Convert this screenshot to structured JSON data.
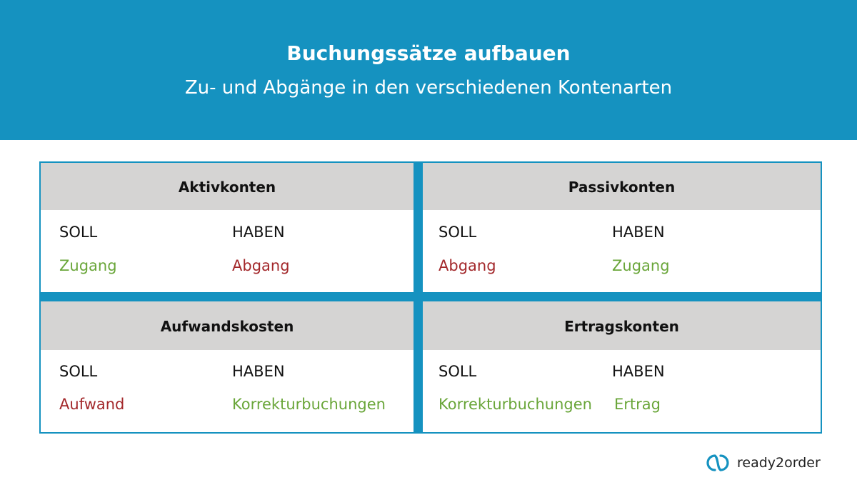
{
  "header": {
    "title": "Buchungssätze aufbauen",
    "subtitle": "Zu- und Abgänge in den verschiedenen Kontenarten"
  },
  "colors": {
    "brand": "#1592c0",
    "header_gray": "#d5d4d3",
    "increase_green": "#6aa63a",
    "decrease_red": "#a3282b"
  },
  "cells": [
    {
      "title": "Aktivkonten",
      "soll": "SOLL",
      "haben": "HABEN",
      "soll_value": "Zugang",
      "haben_value": "Abgang"
    },
    {
      "title": "Passivkonten",
      "soll": "SOLL",
      "haben": "HABEN",
      "soll_value": "Abgang",
      "haben_value": "Zugang"
    },
    {
      "title": "Aufwandskosten",
      "soll": "SOLL",
      "haben": "HABEN",
      "soll_value": "Aufwand",
      "haben_value": "Korrekturbuchungen"
    },
    {
      "title": "Ertragskonten",
      "soll": "SOLL",
      "haben": "HABEN",
      "soll_value": "Korrekturbuchungen",
      "haben_value": "Ertrag"
    }
  ],
  "logo": {
    "text": "ready2order",
    "icon": "linked-rings-icon"
  }
}
